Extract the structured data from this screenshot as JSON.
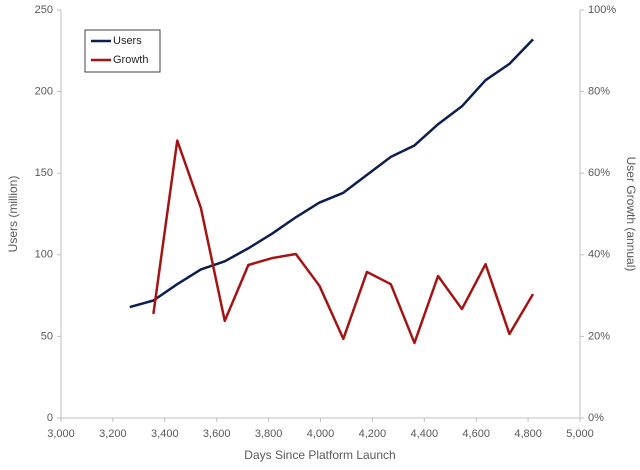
{
  "chart_data": {
    "type": "line",
    "x_label": "Days Since Platform Launch",
    "y_label": "Users (million)",
    "y2_label": "User Growth (annual)",
    "x": [
      3265,
      3356,
      3448,
      3539,
      3631,
      3722,
      3814,
      3905,
      3996,
      4088,
      4179,
      4271,
      4362,
      4453,
      4545,
      4636,
      4728,
      4819
    ],
    "series": [
      {
        "name": "Users",
        "color": "#0c1f4f",
        "values": [
          68,
          72,
          82,
          91,
          96,
          104,
          113,
          123,
          132,
          138,
          149,
          160,
          167,
          180,
          191,
          207,
          217,
          232
        ]
      },
      {
        "name": "Growth",
        "color": "#a31515",
        "axis": "y2",
        "values": [
          null,
          25.5,
          68,
          51.5,
          23.8,
          37.5,
          39.2,
          40.2,
          32.4,
          19.4,
          35.8,
          32.8,
          18.4,
          34.8,
          26.7,
          37.7,
          20.6,
          30.4
        ]
      }
    ],
    "xlim": [
      3000,
      5000
    ],
    "xticks": [
      {
        "value": 3000,
        "label": "3,000"
      },
      {
        "value": 3200,
        "label": "3,200"
      },
      {
        "value": 3400,
        "label": "3,400"
      },
      {
        "value": 3600,
        "label": "3,600"
      },
      {
        "value": 3800,
        "label": "3,800"
      },
      {
        "value": 4000,
        "label": "4,000"
      },
      {
        "value": 4200,
        "label": "4,200"
      },
      {
        "value": 4400,
        "label": "4,400"
      },
      {
        "value": 4600,
        "label": "4,600"
      },
      {
        "value": 4800,
        "label": "4,800"
      },
      {
        "value": 5000,
        "label": "5,000"
      }
    ],
    "ylim": [
      0,
      250
    ],
    "yticks": [
      0,
      50,
      100,
      150,
      200,
      250
    ],
    "y2lim": [
      0,
      100
    ],
    "y2ticks": [
      {
        "value": 0,
        "label": "0%"
      },
      {
        "value": 20,
        "label": "20%"
      },
      {
        "value": 40,
        "label": "40%"
      },
      {
        "value": 60,
        "label": "60%"
      },
      {
        "value": 80,
        "label": "80%"
      },
      {
        "value": 100,
        "label": "100%"
      }
    ],
    "grid": false,
    "legend": "upper-left"
  }
}
